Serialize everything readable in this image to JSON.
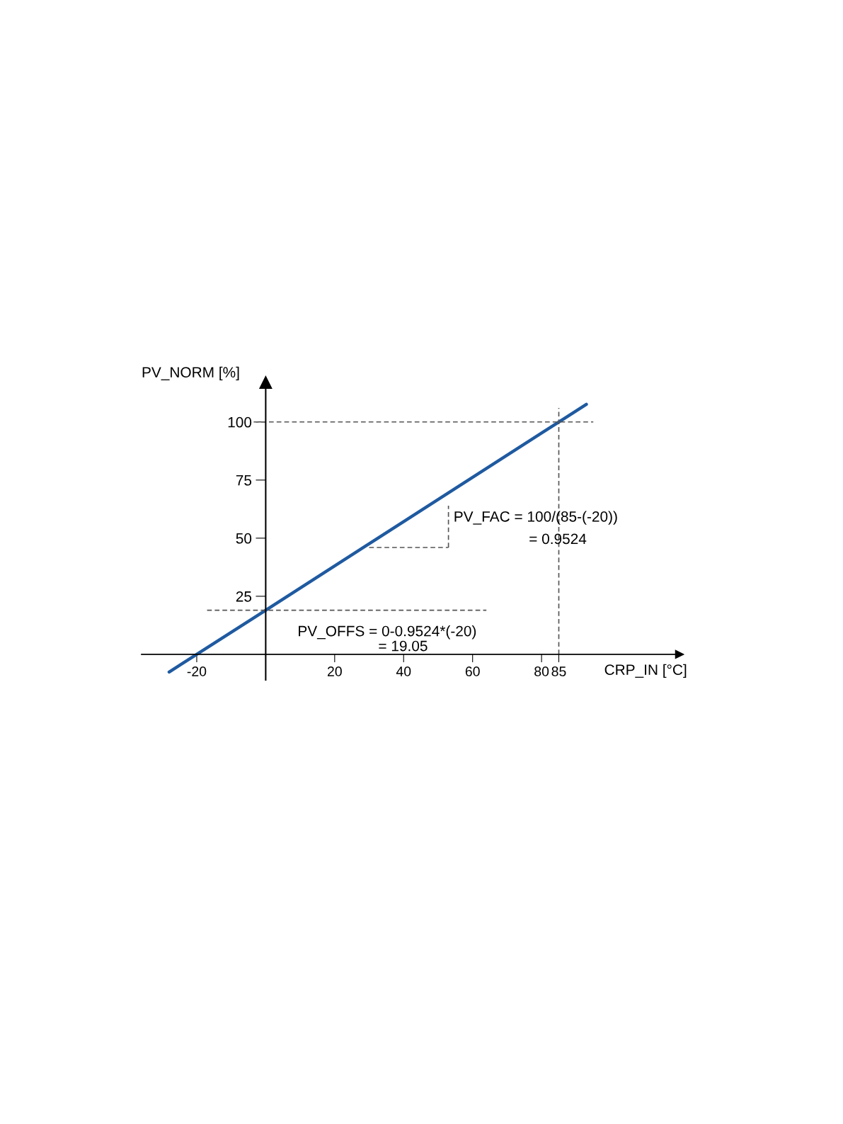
{
  "chart_data": {
    "type": "line",
    "xlabel": "CRP_IN [°C]",
    "ylabel": "PV_NORM [%]",
    "xlim": [
      -36,
      120
    ],
    "ylim": [
      -11,
      117
    ],
    "xticks": [
      -20,
      20,
      40,
      60,
      80,
      85
    ],
    "yticks": [
      25,
      50,
      75,
      100
    ],
    "grid": false,
    "series": [
      {
        "x": [
          -28,
          -20,
          0,
          85,
          93
        ],
        "values": [
          -7.6,
          0,
          19,
          100,
          107.6
        ],
        "color": "#1f5aa0",
        "line_style": "solid"
      },
      {
        "x": [
          -3.5,
          95
        ],
        "values": [
          100,
          100
        ],
        "color": "#555555",
        "line_style": "dashed"
      },
      {
        "x": [
          85,
          85
        ],
        "values": [
          0,
          106
        ],
        "color": "#555555",
        "line_style": "dashed"
      },
      {
        "x": [
          -17,
          64
        ],
        "values": [
          19,
          19
        ],
        "color": "#555555",
        "line_style": "dashed"
      },
      {
        "x": [
          30,
          53
        ],
        "values": [
          46,
          46
        ],
        "color": "#555555",
        "line_style": "dashed"
      },
      {
        "x": [
          53,
          53
        ],
        "values": [
          46,
          64
        ],
        "color": "#555555",
        "line_style": "dashed"
      }
    ],
    "annotations": [
      "PV_FAC = 100/(85-(-20))",
      "= 0.9524",
      "PV_OFFS = 0-0.9524*(-20)",
      "= 19.05"
    ]
  }
}
